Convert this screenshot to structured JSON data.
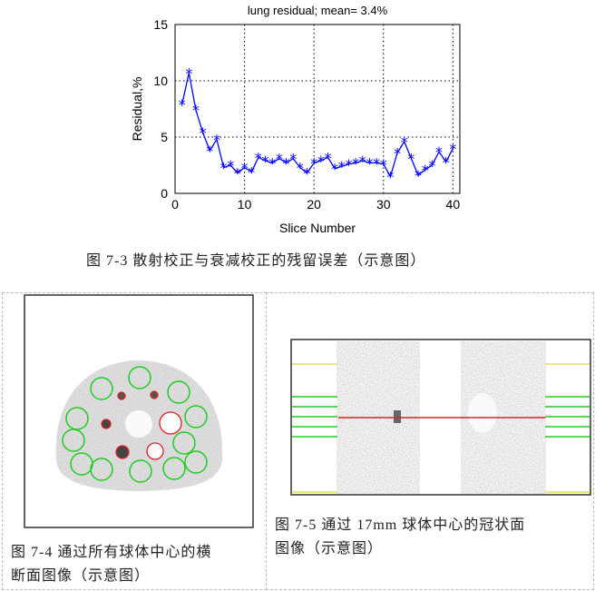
{
  "chart_data": {
    "type": "line",
    "title": "lung residual; mean= 3.4%",
    "xlabel": "Slice Number",
    "ylabel": "Residual,%",
    "xlim": [
      0,
      41
    ],
    "ylim": [
      0,
      15
    ],
    "xticks": [
      0,
      10,
      20,
      30,
      40
    ],
    "yticks": [
      0,
      5,
      10,
      15
    ],
    "grid": true,
    "marker": "asterisk",
    "color": "#0000ff",
    "x": [
      1,
      2,
      3,
      4,
      5,
      6,
      7,
      8,
      9,
      10,
      11,
      12,
      13,
      14,
      15,
      16,
      17,
      18,
      19,
      20,
      21,
      22,
      23,
      24,
      25,
      26,
      27,
      28,
      29,
      30,
      31,
      32,
      33,
      34,
      35,
      36,
      37,
      38,
      39,
      40
    ],
    "values": [
      7.9,
      10.7,
      7.4,
      5.4,
      3.8,
      4.8,
      2.3,
      2.5,
      1.8,
      2.3,
      1.9,
      3.2,
      2.9,
      2.7,
      3.1,
      2.7,
      3.1,
      2.3,
      1.8,
      2.7,
      2.9,
      3.2,
      2.2,
      2.4,
      2.6,
      2.7,
      2.9,
      2.7,
      2.7,
      2.6,
      1.5,
      3.6,
      4.6,
      3.1,
      1.6,
      2.1,
      2.5,
      3.7,
      2.8,
      4.0
    ]
  },
  "captions": {
    "fig73": "图 7-3 散射校正与衰减校正的残留误差（示意图）",
    "fig74_line1": "图 7-4 通过所有球体中心的横",
    "fig74_line2": "断面图像（示意图）",
    "fig75_line1": "图 7-5 通过 17mm 球体中心的冠状面",
    "fig75_line2": "图像（示意图）"
  },
  "colors": {
    "roi_green": "#22cc22",
    "roi_red": "#e02020",
    "yellow_line": "#e8e040",
    "series": "#0000ff"
  }
}
